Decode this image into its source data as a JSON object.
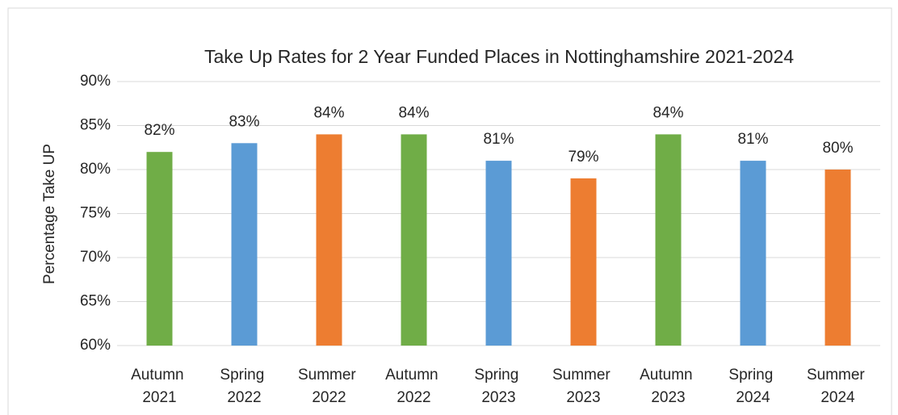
{
  "chart_data": {
    "type": "bar",
    "title": "Take Up Rates for 2 Year Funded Places in Nottinghamshire 2021-2024",
    "y_axis_label": "Percentage Take UP",
    "categories": [
      "Autumn 2021",
      "Spring 2022",
      "Summer 2022",
      "Autumn 2022",
      "Spring 2023",
      "Summer 2023",
      "Autumn 2023",
      "Spring 2024",
      "Summer 2024"
    ],
    "values": [
      82,
      83,
      84,
      84,
      81,
      79,
      84,
      81,
      80
    ],
    "value_labels": [
      "82%",
      "83%",
      "84%",
      "84%",
      "81%",
      "79%",
      "84%",
      "81%",
      "80%"
    ],
    "colors": [
      "#70ad47",
      "#5b9bd5",
      "#ed7d31",
      "#70ad47",
      "#5b9bd5",
      "#ed7d31",
      "#70ad47",
      "#5b9bd5",
      "#ed7d31"
    ],
    "ylim": [
      60,
      90
    ],
    "yticks": [
      {
        "value": 60,
        "label": "60%"
      },
      {
        "value": 65,
        "label": "65%"
      },
      {
        "value": 70,
        "label": "70%"
      },
      {
        "value": 75,
        "label": "75%"
      },
      {
        "value": 80,
        "label": "80%"
      },
      {
        "value": 85,
        "label": "85%"
      },
      {
        "value": 90,
        "label": "90%"
      }
    ],
    "grid": true
  }
}
